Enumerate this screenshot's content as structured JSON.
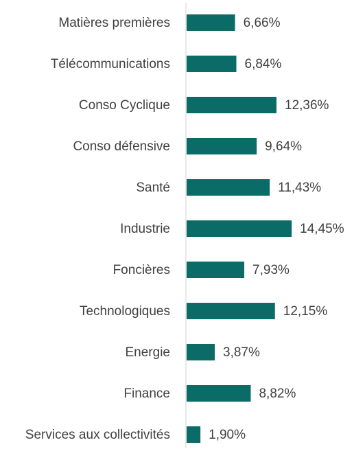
{
  "chart_data": {
    "type": "bar",
    "orientation": "horizontal",
    "categories": [
      "Matières premières",
      "Télécommunications",
      "Conso Cyclique",
      "Conso défensive",
      "Santé",
      "Industrie",
      "Foncières",
      "Technologiques",
      "Energie",
      "Finance",
      "Services aux collectivités"
    ],
    "values": [
      6.66,
      6.84,
      12.36,
      9.64,
      11.43,
      14.45,
      7.93,
      12.15,
      3.87,
      8.82,
      1.9
    ],
    "value_labels": [
      "6,66%",
      "6,84%",
      "12,36%",
      "9,64%",
      "11,43%",
      "14,45%",
      "7,93%",
      "12,15%",
      "3,87%",
      "8,82%",
      "1,90%"
    ],
    "color": "#0b6b67"
  }
}
